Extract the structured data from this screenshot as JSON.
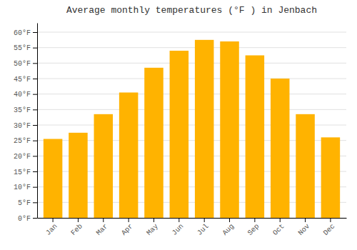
{
  "chart_data": {
    "type": "bar",
    "title": "Average monthly temperatures (°F ) in Jenbach",
    "categories": [
      "Jan",
      "Feb",
      "Mar",
      "Apr",
      "May",
      "Jun",
      "Jul",
      "Aug",
      "Sep",
      "Oct",
      "Nov",
      "Dec"
    ],
    "values": [
      25.5,
      27.5,
      33.5,
      40.5,
      48.5,
      54.0,
      57.5,
      57.0,
      52.5,
      45.0,
      33.5,
      26.0
    ],
    "color": "#FFB300",
    "ylim": [
      0,
      63
    ],
    "yticks": [
      {
        "value": 0,
        "label": "0°F"
      },
      {
        "value": 5,
        "label": "5°F"
      },
      {
        "value": 10,
        "label": "10°F"
      },
      {
        "value": 15,
        "label": "15°F"
      },
      {
        "value": 20,
        "label": "20°F"
      },
      {
        "value": 25,
        "label": "25°F"
      },
      {
        "value": 30,
        "label": "30°F"
      },
      {
        "value": 35,
        "label": "35°F"
      },
      {
        "value": 40,
        "label": "40°F"
      },
      {
        "value": 45,
        "label": "45°F"
      },
      {
        "value": 50,
        "label": "50°F"
      },
      {
        "value": 55,
        "label": "55°F"
      },
      {
        "value": 60,
        "label": "60°F"
      }
    ],
    "grid": true
  }
}
